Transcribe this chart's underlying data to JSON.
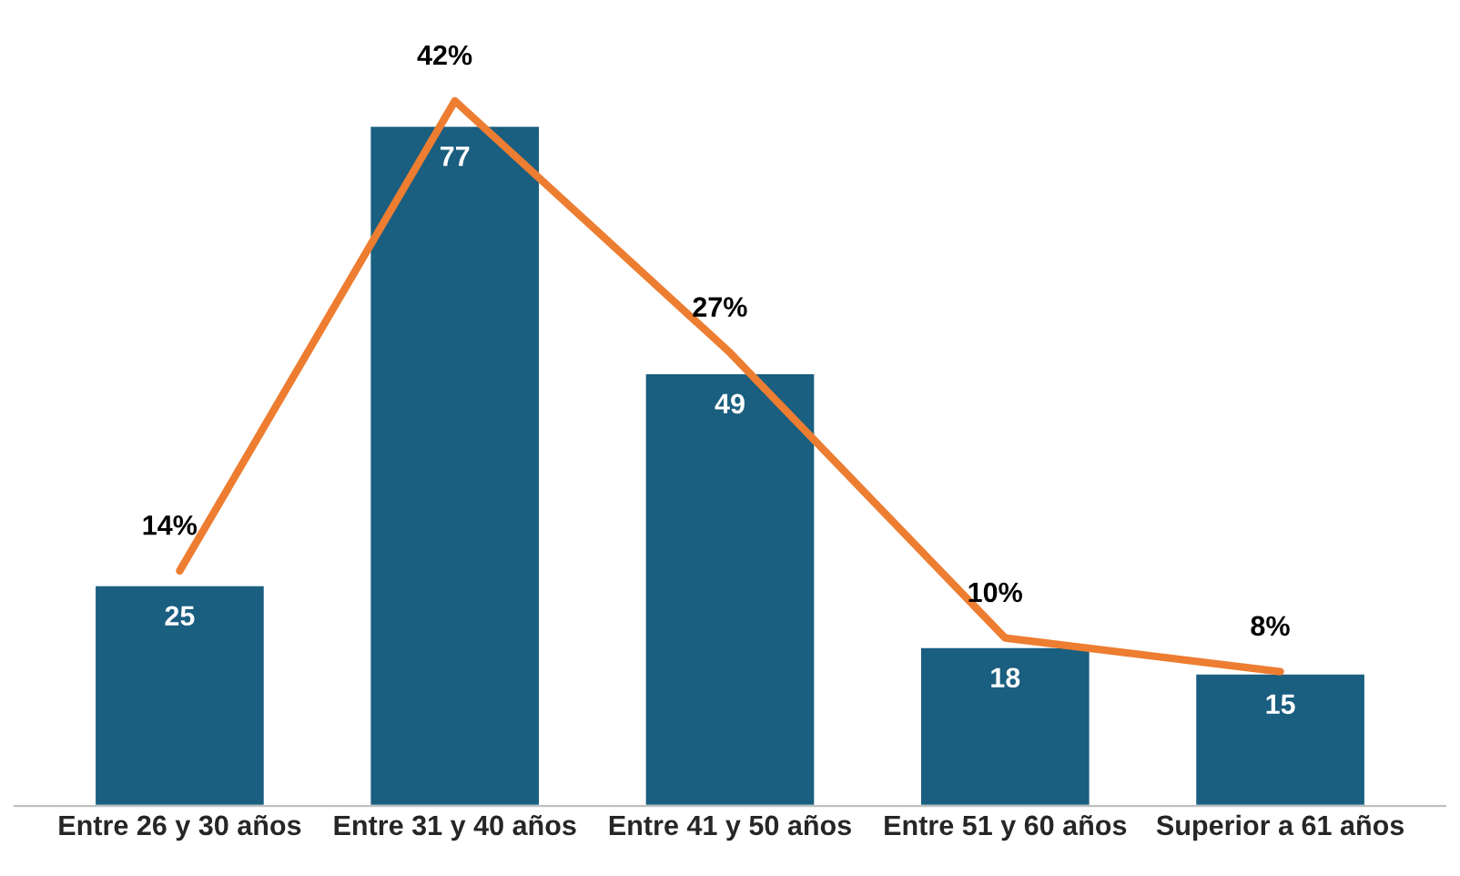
{
  "chart_data": {
    "type": "bar",
    "categories": [
      "Entre 26 y 30 años",
      "Entre 31 y 40 años",
      "Entre 41 y 50 años",
      "Entre 51 y 60 años",
      "Superior a 61 años"
    ],
    "series": [
      {
        "color": "#1a5e80",
        "values": [
          25,
          77,
          49,
          18,
          15
        ],
        "data_labels": true
      },
      {
        "type": "line",
        "color": "#ed7d31",
        "axis": "y2",
        "values": [
          14,
          42,
          27,
          10,
          8
        ],
        "value_labels": [
          "14%",
          "42%",
          "27%",
          "10%",
          "8%"
        ]
      }
    ],
    "tick_labels": "x",
    "grid": false,
    "legend": false
  }
}
